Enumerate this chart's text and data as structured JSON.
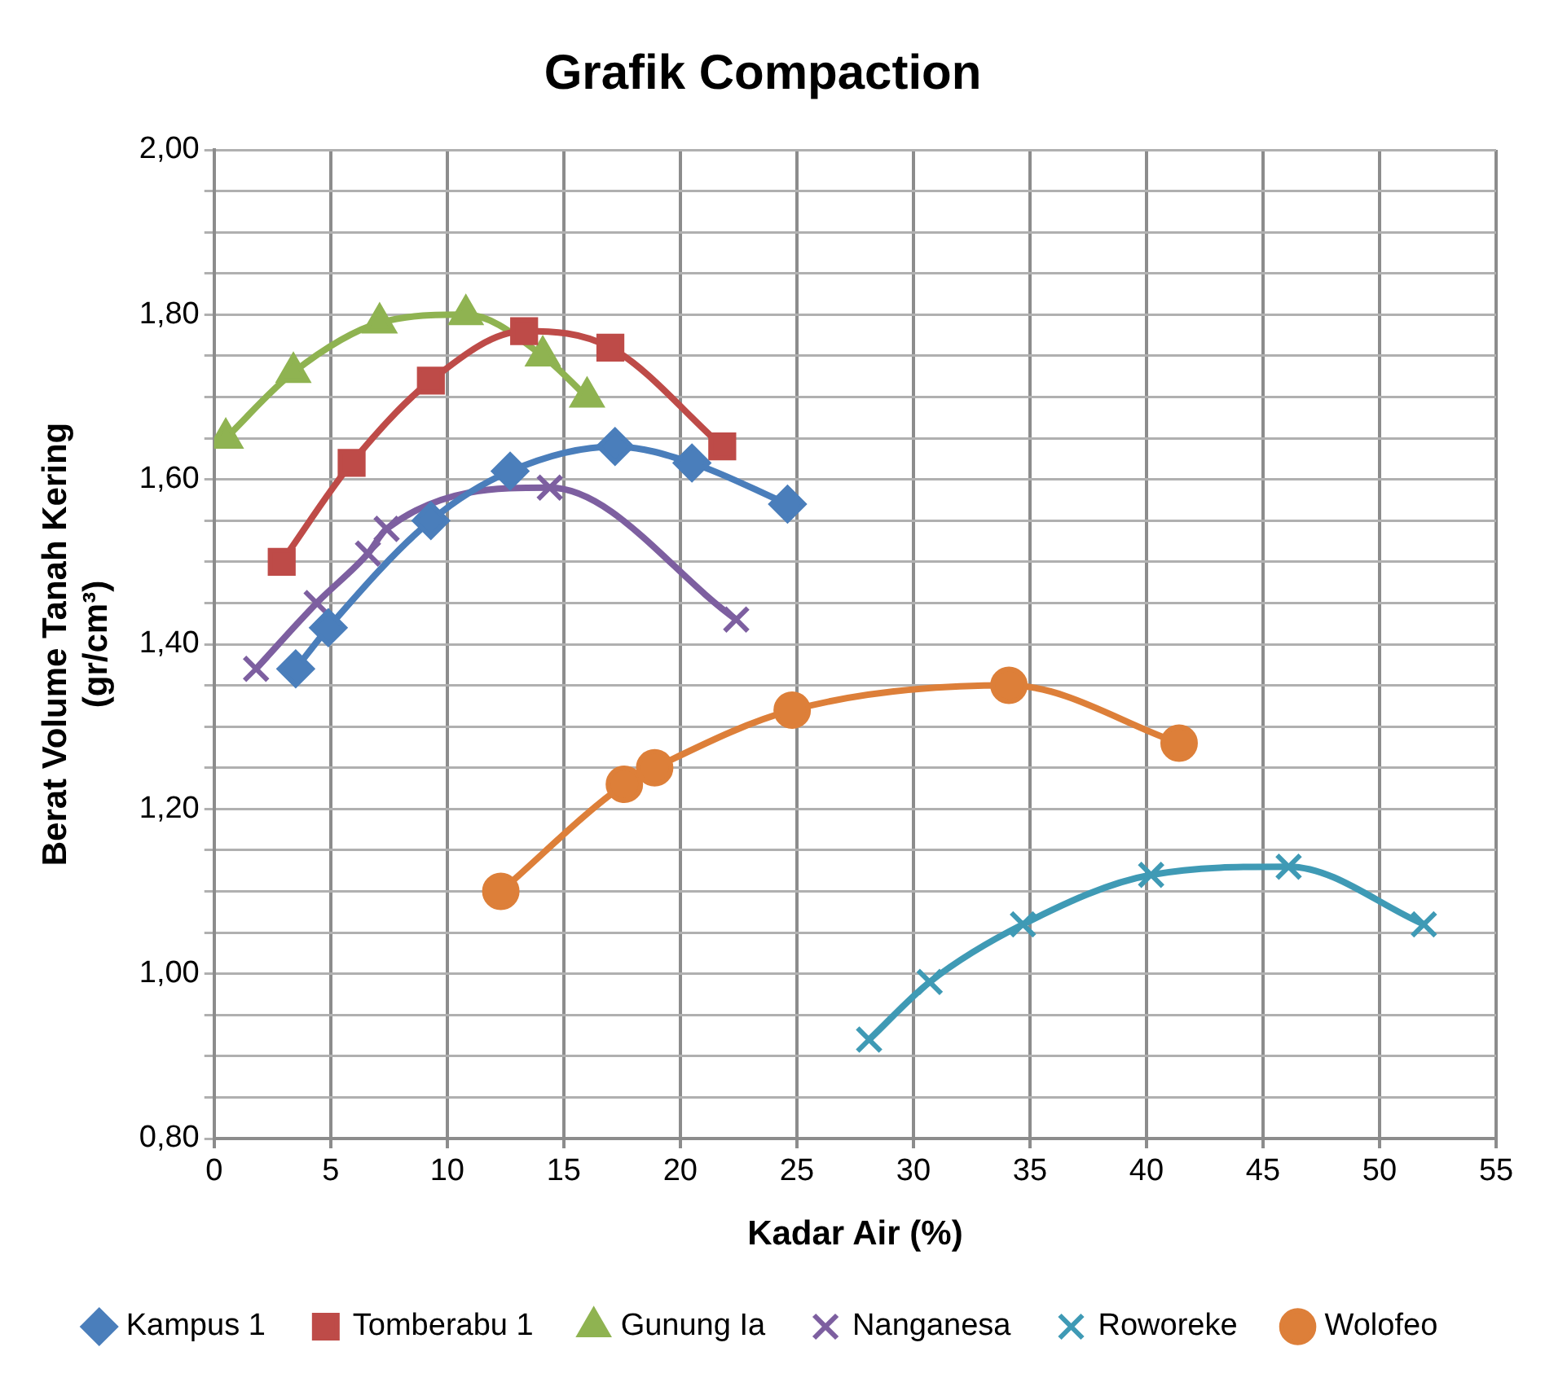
{
  "chart_data": {
    "type": "line",
    "title": "Grafik Compaction",
    "xlabel": "Kadar Air (%)",
    "ylabel": "Berat Volume Tanah Kering\n(gr/cm³)",
    "xlim": [
      0,
      55
    ],
    "xticks": [
      0,
      5,
      10,
      15,
      20,
      25,
      30,
      35,
      40,
      45,
      50,
      55
    ],
    "ylim": [
      0.8,
      2.0
    ],
    "yticks": [
      {
        "value": 0.8,
        "label": "0,80"
      },
      {
        "value": 0.85,
        "label": null
      },
      {
        "value": 0.9,
        "label": null
      },
      {
        "value": 0.95,
        "label": null
      },
      {
        "value": 1.0,
        "label": "1,00"
      },
      {
        "value": 1.05,
        "label": null
      },
      {
        "value": 1.1,
        "label": null
      },
      {
        "value": 1.15,
        "label": null
      },
      {
        "value": 1.2,
        "label": "1,20"
      },
      {
        "value": 1.25,
        "label": null
      },
      {
        "value": 1.3,
        "label": null
      },
      {
        "value": 1.35,
        "label": null
      },
      {
        "value": 1.4,
        "label": "1,40"
      },
      {
        "value": 1.45,
        "label": null
      },
      {
        "value": 1.5,
        "label": null
      },
      {
        "value": 1.55,
        "label": null
      },
      {
        "value": 1.6,
        "label": "1,60"
      },
      {
        "value": 1.65,
        "label": null
      },
      {
        "value": 1.7,
        "label": null
      },
      {
        "value": 1.75,
        "label": null
      },
      {
        "value": 1.8,
        "label": "1,80"
      },
      {
        "value": 1.85,
        "label": null
      },
      {
        "value": 1.9,
        "label": null
      },
      {
        "value": 1.95,
        "label": null
      },
      {
        "value": 2.0,
        "label": "2,00"
      }
    ],
    "grid": true,
    "legend": "bottom",
    "line_style": "solid",
    "series": [
      {
        "name": "Kampus 1",
        "color": "#4a7ebb",
        "marker": "diamond",
        "x": [
          3.5,
          4.9,
          9.3,
          12.7,
          17.2,
          20.5,
          24.6
        ],
        "values": [
          1.37,
          1.42,
          1.55,
          1.61,
          1.64,
          1.62,
          1.57
        ]
      },
      {
        "name": "Tomberabu 1",
        "color": "#be4b48",
        "marker": "square",
        "x": [
          2.9,
          5.9,
          9.3,
          13.3,
          17.0,
          21.8
        ],
        "values": [
          1.5,
          1.62,
          1.72,
          1.78,
          1.76,
          1.64
        ]
      },
      {
        "name": "Gunung Ia",
        "color": "#8fb351",
        "marker": "triangle",
        "x": [
          0.5,
          3.4,
          7.1,
          10.8,
          14.1,
          16.0
        ],
        "values": [
          1.65,
          1.73,
          1.79,
          1.8,
          1.75,
          1.7
        ]
      },
      {
        "name": "Nanganesa",
        "color": "#7d5fa0",
        "marker": "cross",
        "x": [
          1.8,
          4.4,
          6.6,
          7.4,
          14.4,
          22.4
        ],
        "values": [
          1.37,
          1.45,
          1.51,
          1.54,
          1.59,
          1.43
        ]
      },
      {
        "name": "Roworeke",
        "color": "#3f9ab5",
        "marker": "cross",
        "x": [
          28.1,
          30.7,
          34.7,
          40.2,
          46.1,
          51.9
        ],
        "values": [
          0.92,
          0.99,
          1.06,
          1.12,
          1.13,
          1.06
        ]
      },
      {
        "name": "Wolofeo",
        "color": "#dd7f39",
        "marker": "circle",
        "x": [
          12.3,
          17.6,
          18.9,
          24.8,
          34.1,
          41.4
        ],
        "values": [
          1.1,
          1.23,
          1.25,
          1.32,
          1.35,
          1.28
        ]
      }
    ]
  }
}
